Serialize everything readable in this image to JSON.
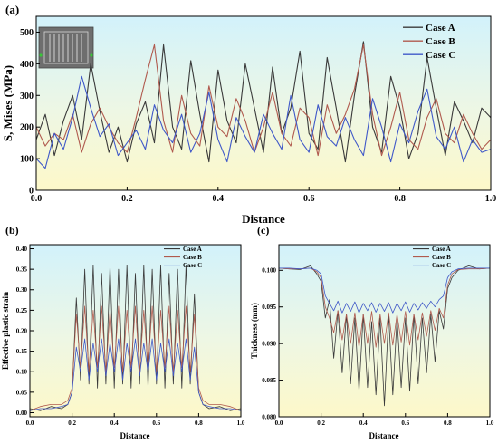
{
  "panels": [
    {
      "panel_label": "(a)",
      "chart_data": {
        "type": "line",
        "title": "",
        "xlabel": "Distance",
        "ylabel": "S, Mises (MPa)",
        "xlim": [
          0,
          1.0
        ],
        "ylim": [
          0,
          550
        ],
        "xticks": [
          0.0,
          0.2,
          0.4,
          0.6,
          0.8,
          1.0
        ],
        "yticks": [
          0,
          100,
          200,
          300,
          400,
          500
        ],
        "grid": false,
        "legend_position": "top-right",
        "inset_image": "mesh-thumbnail",
        "series": [
          {
            "name": "Case A",
            "color": "#3a3a3a",
            "x": [
              0.0,
              0.02,
              0.04,
              0.06,
              0.08,
              0.1,
              0.12,
              0.14,
              0.16,
              0.18,
              0.2,
              0.22,
              0.24,
              0.26,
              0.28,
              0.3,
              0.32,
              0.34,
              0.36,
              0.38,
              0.4,
              0.42,
              0.44,
              0.46,
              0.48,
              0.5,
              0.52,
              0.54,
              0.56,
              0.58,
              0.6,
              0.62,
              0.64,
              0.66,
              0.68,
              0.7,
              0.72,
              0.74,
              0.76,
              0.78,
              0.8,
              0.82,
              0.84,
              0.86,
              0.88,
              0.9,
              0.92,
              0.94,
              0.96,
              0.98,
              1.0
            ],
            "values": [
              160,
              240,
              110,
              220,
              300,
              160,
              400,
              250,
              120,
              200,
              90,
              210,
              280,
              150,
              460,
              200,
              130,
              410,
              240,
              90,
              380,
              220,
              150,
              400,
              260,
              120,
              390,
              180,
              260,
              440,
              180,
              130,
              420,
              260,
              90,
              300,
              470,
              200,
              120,
              360,
              260,
              100,
              180,
              420,
              260,
              110,
              280,
              220,
              150,
              260,
              230
            ]
          },
          {
            "name": "Case B",
            "color": "#b05a4e",
            "x": [
              0.0,
              0.02,
              0.04,
              0.06,
              0.08,
              0.1,
              0.12,
              0.14,
              0.16,
              0.18,
              0.2,
              0.22,
              0.24,
              0.26,
              0.28,
              0.3,
              0.32,
              0.34,
              0.36,
              0.38,
              0.4,
              0.42,
              0.44,
              0.46,
              0.48,
              0.5,
              0.52,
              0.54,
              0.56,
              0.58,
              0.6,
              0.62,
              0.64,
              0.66,
              0.68,
              0.7,
              0.72,
              0.74,
              0.76,
              0.78,
              0.8,
              0.82,
              0.84,
              0.86,
              0.88,
              0.9,
              0.92,
              0.94,
              0.96,
              0.98,
              1.0
            ],
            "values": [
              200,
              140,
              180,
              160,
              240,
              120,
              210,
              260,
              200,
              150,
              120,
              230,
              350,
              460,
              220,
              120,
              300,
              180,
              140,
              330,
              200,
              170,
              290,
              220,
              120,
              200,
              310,
              180,
              140,
              260,
              230,
              110,
              270,
              180,
              240,
              320,
              460,
              240,
              110,
              200,
              310,
              160,
              130,
              230,
              290,
              180,
              150,
              240,
              180,
              130,
              160
            ]
          },
          {
            "name": "Case C",
            "color": "#3f58c8",
            "x": [
              0.0,
              0.02,
              0.04,
              0.06,
              0.08,
              0.1,
              0.12,
              0.14,
              0.16,
              0.18,
              0.2,
              0.22,
              0.24,
              0.26,
              0.28,
              0.3,
              0.32,
              0.34,
              0.36,
              0.38,
              0.4,
              0.42,
              0.44,
              0.46,
              0.48,
              0.5,
              0.52,
              0.54,
              0.56,
              0.58,
              0.6,
              0.62,
              0.64,
              0.66,
              0.68,
              0.7,
              0.72,
              0.74,
              0.76,
              0.78,
              0.8,
              0.82,
              0.84,
              0.86,
              0.88,
              0.9,
              0.92,
              0.94,
              0.96,
              0.98,
              1.0
            ],
            "values": [
              100,
              70,
              180,
              130,
              230,
              360,
              260,
              170,
              210,
              110,
              150,
              190,
              130,
              270,
              190,
              150,
              240,
              120,
              180,
              310,
              160,
              90,
              230,
              170,
              120,
              240,
              180,
              130,
              300,
              160,
              120,
              270,
              170,
              140,
              230,
              160,
              110,
              290,
              200,
              90,
              210,
              150,
              250,
              320,
              170,
              130,
              200,
              90,
              160,
              120,
              130
            ]
          }
        ]
      }
    },
    {
      "panel_label": "(b)",
      "chart_data": {
        "type": "line",
        "title": "",
        "xlabel": "Distance",
        "ylabel": "Effective plastic strain",
        "xlim": [
          0,
          1.0
        ],
        "ylim": [
          -0.01,
          0.41
        ],
        "xticks": [
          0.0,
          0.2,
          0.4,
          0.6,
          0.8,
          1.0
        ],
        "yticks": [
          0.0,
          0.05,
          0.1,
          0.15,
          0.2,
          0.25,
          0.3,
          0.35,
          0.4
        ],
        "grid": false,
        "legend_position": "top-right",
        "series": [
          {
            "name": "Case A",
            "color": "#3a3a3a",
            "x": [
              0.0,
              0.05,
              0.1,
              0.15,
              0.18,
              0.2,
              0.22,
              0.24,
              0.26,
              0.28,
              0.3,
              0.32,
              0.34,
              0.36,
              0.38,
              0.4,
              0.42,
              0.44,
              0.46,
              0.48,
              0.5,
              0.52,
              0.54,
              0.56,
              0.58,
              0.6,
              0.62,
              0.64,
              0.66,
              0.68,
              0.7,
              0.72,
              0.74,
              0.76,
              0.78,
              0.8,
              0.82,
              0.85,
              0.9,
              0.95,
              1.0
            ],
            "values": [
              0.01,
              0.005,
              0.015,
              0.01,
              0.02,
              0.05,
              0.28,
              0.08,
              0.35,
              0.07,
              0.36,
              0.06,
              0.34,
              0.07,
              0.36,
              0.06,
              0.35,
              0.07,
              0.36,
              0.06,
              0.34,
              0.07,
              0.36,
              0.06,
              0.35,
              0.07,
              0.36,
              0.06,
              0.34,
              0.07,
              0.35,
              0.06,
              0.36,
              0.07,
              0.29,
              0.05,
              0.02,
              0.01,
              0.015,
              0.005,
              0.01
            ]
          },
          {
            "name": "Case B",
            "color": "#b05a4e",
            "x": [
              0.0,
              0.05,
              0.1,
              0.15,
              0.18,
              0.2,
              0.22,
              0.24,
              0.26,
              0.28,
              0.3,
              0.32,
              0.34,
              0.36,
              0.38,
              0.4,
              0.42,
              0.44,
              0.46,
              0.48,
              0.5,
              0.52,
              0.54,
              0.56,
              0.58,
              0.6,
              0.62,
              0.64,
              0.66,
              0.68,
              0.7,
              0.72,
              0.74,
              0.76,
              0.78,
              0.8,
              0.82,
              0.85,
              0.9,
              0.95,
              1.0
            ],
            "values": [
              0.005,
              0.015,
              0.02,
              0.02,
              0.03,
              0.06,
              0.24,
              0.11,
              0.26,
              0.1,
              0.25,
              0.11,
              0.26,
              0.1,
              0.25,
              0.11,
              0.26,
              0.1,
              0.25,
              0.11,
              0.26,
              0.1,
              0.25,
              0.11,
              0.26,
              0.1,
              0.25,
              0.11,
              0.26,
              0.1,
              0.25,
              0.11,
              0.26,
              0.1,
              0.24,
              0.06,
              0.03,
              0.02,
              0.02,
              0.015,
              0.005
            ]
          },
          {
            "name": "Case C",
            "color": "#3f58c8",
            "x": [
              0.0,
              0.05,
              0.1,
              0.15,
              0.18,
              0.2,
              0.22,
              0.24,
              0.26,
              0.28,
              0.3,
              0.32,
              0.34,
              0.36,
              0.38,
              0.4,
              0.42,
              0.44,
              0.46,
              0.48,
              0.5,
              0.52,
              0.54,
              0.56,
              0.58,
              0.6,
              0.62,
              0.64,
              0.66,
              0.68,
              0.7,
              0.72,
              0.74,
              0.76,
              0.78,
              0.8,
              0.82,
              0.85,
              0.9,
              0.95,
              1.0
            ],
            "values": [
              0.005,
              0.01,
              0.01,
              0.015,
              0.02,
              0.05,
              0.16,
              0.1,
              0.18,
              0.08,
              0.17,
              0.1,
              0.18,
              0.09,
              0.17,
              0.1,
              0.18,
              0.08,
              0.17,
              0.1,
              0.18,
              0.09,
              0.17,
              0.1,
              0.18,
              0.08,
              0.17,
              0.1,
              0.18,
              0.09,
              0.17,
              0.1,
              0.18,
              0.08,
              0.16,
              0.05,
              0.02,
              0.015,
              0.01,
              0.01,
              0.005
            ]
          }
        ]
      }
    },
    {
      "panel_label": "(c)",
      "chart_data": {
        "type": "line",
        "title": "",
        "xlabel": "Distance",
        "ylabel": "Thickness (mm)",
        "xlim": [
          0,
          1.0
        ],
        "ylim": [
          0.08,
          0.1035
        ],
        "xticks": [
          0.0,
          0.2,
          0.4,
          0.6,
          0.8,
          1.0
        ],
        "yticks": [
          0.08,
          0.085,
          0.09,
          0.095,
          0.1
        ],
        "grid": false,
        "legend_position": "top-right",
        "series": [
          {
            "name": "Case A",
            "color": "#3a3a3a",
            "x": [
              0.0,
              0.05,
              0.1,
              0.15,
              0.18,
              0.2,
              0.22,
              0.24,
              0.26,
              0.28,
              0.3,
              0.32,
              0.34,
              0.36,
              0.38,
              0.4,
              0.42,
              0.44,
              0.46,
              0.48,
              0.5,
              0.52,
              0.54,
              0.56,
              0.58,
              0.6,
              0.62,
              0.64,
              0.66,
              0.68,
              0.7,
              0.72,
              0.74,
              0.76,
              0.78,
              0.8,
              0.82,
              0.85,
              0.9,
              0.95,
              1.0
            ],
            "values": [
              0.1003,
              0.1002,
              0.1001,
              0.1006,
              0.0995,
              0.0985,
              0.0935,
              0.096,
              0.088,
              0.0945,
              0.086,
              0.094,
              0.0845,
              0.0935,
              0.0835,
              0.094,
              0.084,
              0.093,
              0.083,
              0.0935,
              0.0815,
              0.094,
              0.083,
              0.0935,
              0.084,
              0.0935,
              0.0835,
              0.094,
              0.0845,
              0.0935,
              0.086,
              0.094,
              0.0875,
              0.0945,
              0.092,
              0.0975,
              0.099,
              0.1,
              0.1006,
              0.1002,
              0.1003
            ]
          },
          {
            "name": "Case B",
            "color": "#b05a4e",
            "x": [
              0.0,
              0.05,
              0.1,
              0.15,
              0.18,
              0.2,
              0.22,
              0.24,
              0.26,
              0.28,
              0.3,
              0.32,
              0.34,
              0.36,
              0.38,
              0.4,
              0.42,
              0.44,
              0.46,
              0.48,
              0.5,
              0.52,
              0.54,
              0.56,
              0.58,
              0.6,
              0.62,
              0.64,
              0.66,
              0.68,
              0.7,
              0.72,
              0.74,
              0.76,
              0.78,
              0.8,
              0.82,
              0.85,
              0.9,
              0.95,
              1.0
            ],
            "values": [
              0.1003,
              0.1002,
              0.1002,
              0.1003,
              0.0998,
              0.099,
              0.095,
              0.0935,
              0.0915,
              0.0945,
              0.0905,
              0.094,
              0.09,
              0.0942,
              0.0895,
              0.094,
              0.09,
              0.0944,
              0.0895,
              0.094,
              0.09,
              0.0942,
              0.0898,
              0.094,
              0.0902,
              0.0944,
              0.0898,
              0.094,
              0.0905,
              0.0942,
              0.091,
              0.0945,
              0.0918,
              0.0948,
              0.0935,
              0.098,
              0.0995,
              0.1001,
              0.1002,
              0.1002,
              0.1003
            ]
          },
          {
            "name": "Case C",
            "color": "#3f58c8",
            "x": [
              0.0,
              0.05,
              0.1,
              0.15,
              0.18,
              0.2,
              0.22,
              0.24,
              0.26,
              0.28,
              0.3,
              0.32,
              0.34,
              0.36,
              0.38,
              0.4,
              0.42,
              0.44,
              0.46,
              0.48,
              0.5,
              0.52,
              0.54,
              0.56,
              0.58,
              0.6,
              0.62,
              0.64,
              0.66,
              0.68,
              0.7,
              0.72,
              0.74,
              0.76,
              0.78,
              0.8,
              0.82,
              0.85,
              0.9,
              0.95,
              1.0
            ],
            "values": [
              0.1003,
              0.1003,
              0.1002,
              0.1003,
              0.1,
              0.0995,
              0.0965,
              0.0955,
              0.0945,
              0.0958,
              0.0942,
              0.0955,
              0.0944,
              0.0957,
              0.0942,
              0.0955,
              0.0945,
              0.0956,
              0.0943,
              0.0955,
              0.0944,
              0.0956,
              0.0942,
              0.0955,
              0.0945,
              0.0957,
              0.0943,
              0.0955,
              0.0946,
              0.0956,
              0.0948,
              0.0958,
              0.095,
              0.096,
              0.0965,
              0.099,
              0.0998,
              0.1002,
              0.1003,
              0.1003,
              0.1003
            ]
          }
        ]
      }
    }
  ]
}
